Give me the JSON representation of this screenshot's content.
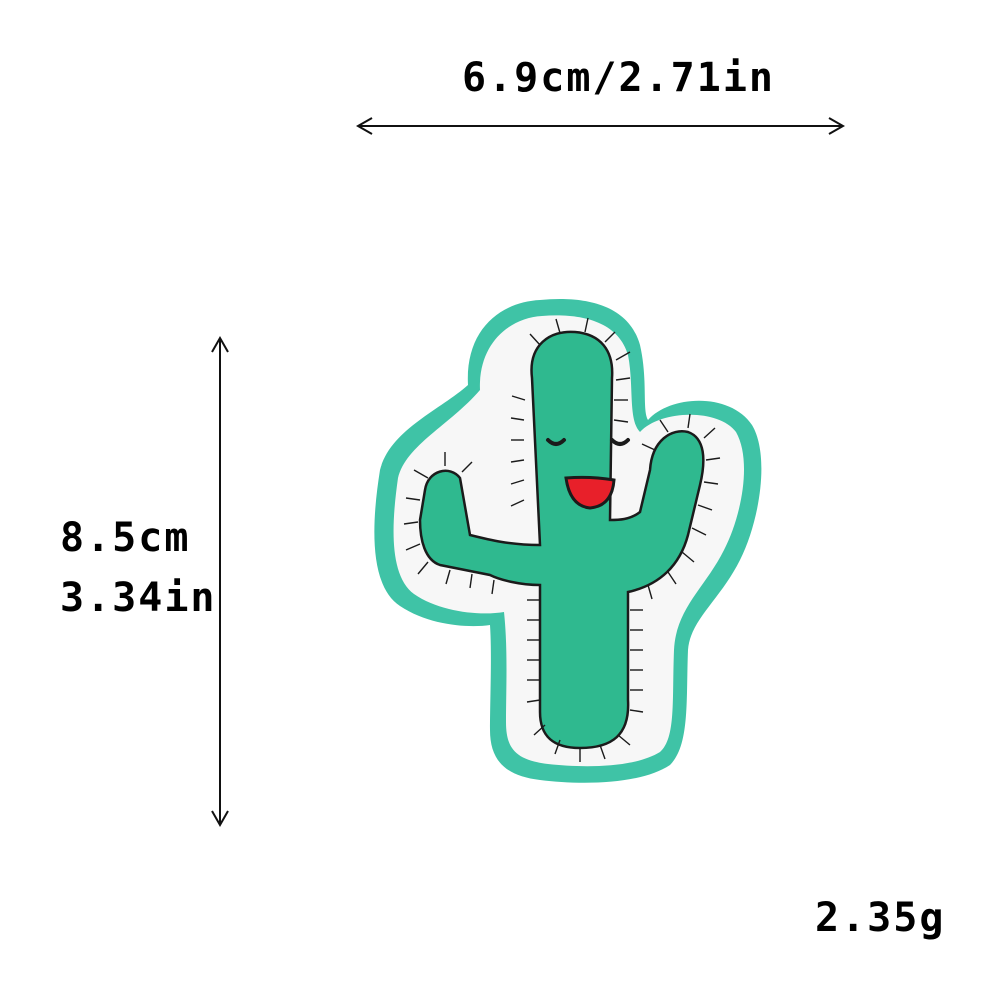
{
  "dimensions": {
    "width_label": "6.9cm/2.71in",
    "height_cm": "8.5cm",
    "height_in": "3.34in",
    "weight": "2.35g"
  },
  "colors": {
    "patch_border": "#3fc3a6",
    "cactus_fill": "#2fb98f",
    "felt": "#f7f7f7",
    "stitch": "#1b1b1b",
    "mouth": "#e8202a"
  }
}
